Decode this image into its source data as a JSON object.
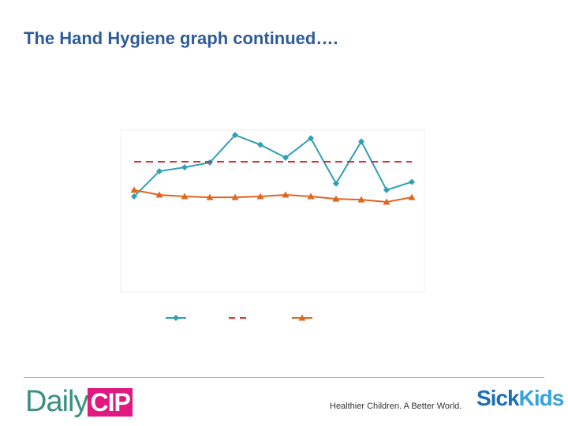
{
  "title": "The Hand Hygiene graph continued….",
  "chart_data": {
    "type": "line",
    "categories": [
      null,
      null,
      null,
      null,
      null,
      null,
      null,
      null,
      null,
      null,
      null,
      null
    ],
    "ylim": [
      0,
      100
    ],
    "series": [
      {
        "color": "#2e9fb5",
        "marker": "diamond",
        "dashed": false,
        "values": [
          59,
          74.6,
          77,
          80,
          97,
          91,
          83,
          95,
          67,
          93,
          63,
          68
        ]
      },
      {
        "color": "#d9312b",
        "marker": "none",
        "dashed": true,
        "values": [
          80,
          80,
          80,
          80,
          80,
          80,
          80,
          80,
          80,
          80,
          80,
          80
        ]
      },
      {
        "color": "#e0661f",
        "marker": "triangle",
        "dashed": false,
        "values": [
          63,
          60,
          59,
          58.5,
          58.5,
          59,
          60,
          59,
          57.5,
          57,
          55.6,
          58.5
        ]
      }
    ]
  },
  "footer": {
    "logo_daily": "Daily",
    "logo_cip": "CIP",
    "tagline": "Healthier Children. A Better World.",
    "brand_sick": "Sick",
    "brand_kids": "Kids"
  }
}
